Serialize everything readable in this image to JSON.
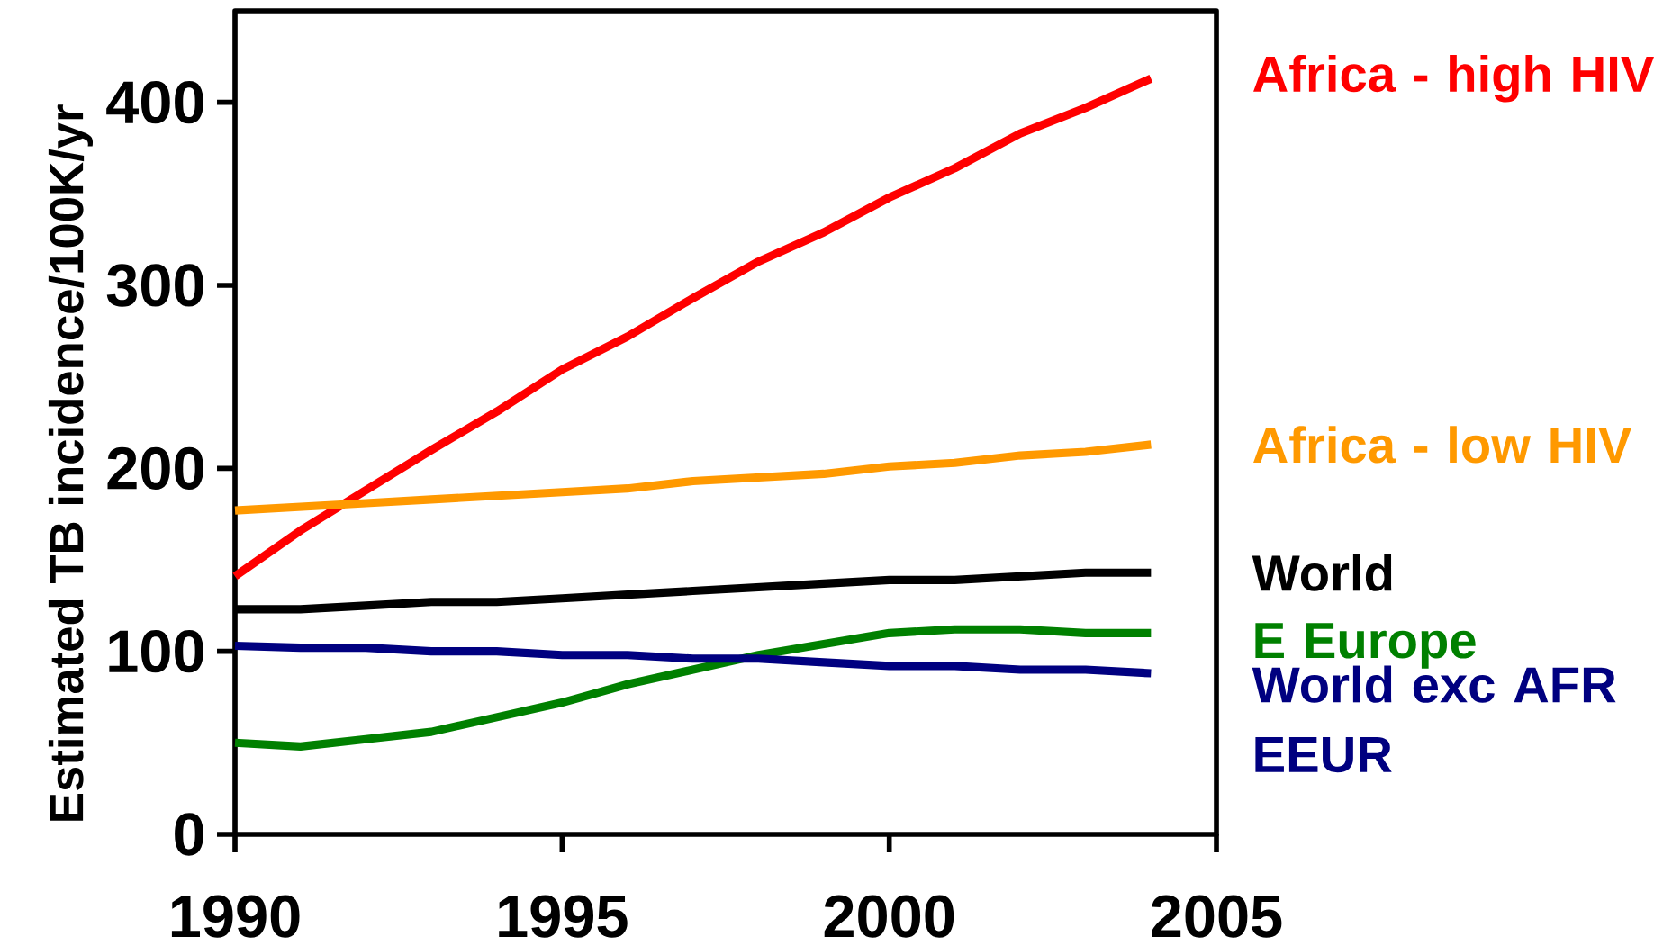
{
  "chart_data": {
    "type": "line",
    "ylabel": "Estimated TB incidence/100K/yr",
    "x": [
      1990,
      1991,
      1992,
      1993,
      1994,
      1995,
      1996,
      1997,
      1998,
      1999,
      2000,
      2001,
      2002,
      2003,
      2004
    ],
    "series": [
      {
        "name": "Africa - high HIV",
        "color": "#ff0000",
        "values": [
          141,
          166,
          188,
          210,
          231,
          254,
          272,
          293,
          313,
          329,
          348,
          364,
          383,
          397,
          413
        ]
      },
      {
        "name": "Africa - low HIV",
        "color": "#ff9900",
        "values": [
          177,
          179,
          181,
          183,
          185,
          187,
          189,
          193,
          195,
          197,
          201,
          203,
          207,
          209,
          213
        ]
      },
      {
        "name": "World",
        "color": "#000000",
        "values": [
          123,
          123,
          125,
          127,
          127,
          129,
          131,
          133,
          135,
          137,
          139,
          139,
          141,
          143,
          143
        ]
      },
      {
        "name": "E Europe",
        "color": "#008000",
        "values": [
          50,
          48,
          52,
          56,
          64,
          72,
          82,
          90,
          98,
          104,
          110,
          112,
          112,
          110,
          110
        ]
      },
      {
        "name": "World exc AFR EEUR",
        "color": "#000080",
        "values": [
          103,
          102,
          102,
          100,
          100,
          98,
          98,
          96,
          96,
          94,
          92,
          92,
          90,
          90,
          88
        ]
      }
    ],
    "xlim": [
      1990,
      2005
    ],
    "ylim": [
      0,
      450
    ],
    "xticks": [
      1990,
      1995,
      2000,
      2005
    ],
    "yticks": [
      0,
      100,
      200,
      300,
      400
    ],
    "grid": false,
    "legend": "right",
    "marker": "none",
    "line_style": "solid"
  }
}
